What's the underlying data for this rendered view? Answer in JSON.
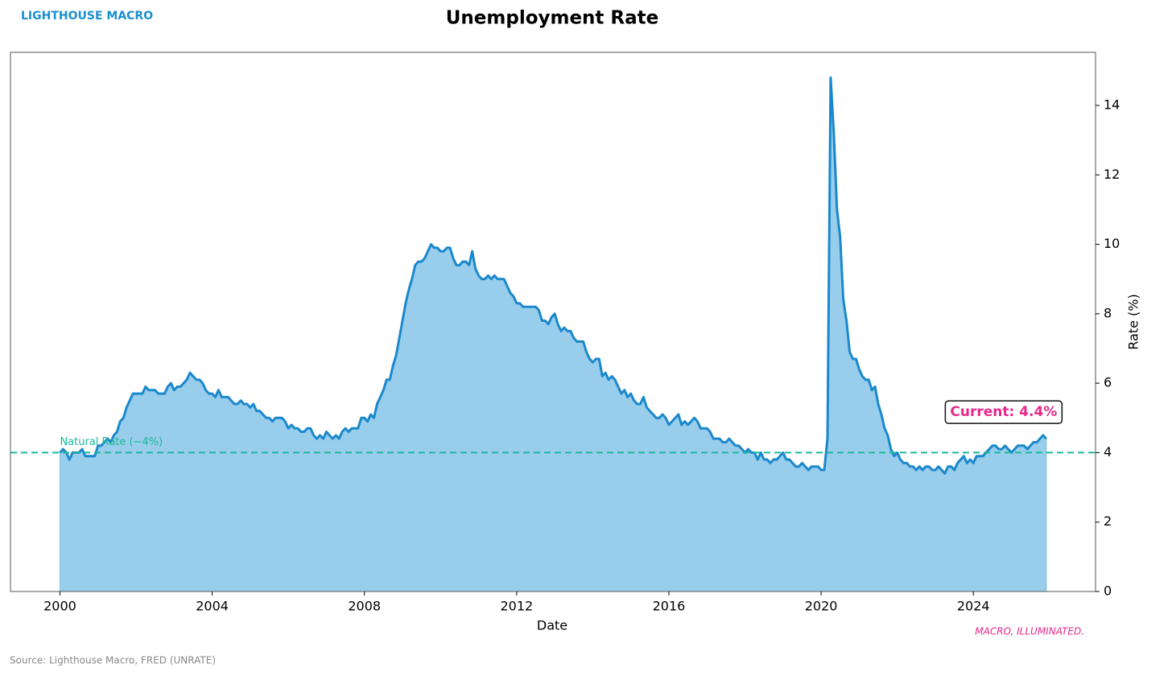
{
  "chart_data": {
    "type": "area",
    "title": "Unemployment Rate",
    "brand": "LIGHTHOUSE MACRO",
    "tagline": "MACRO, ILLUMINATED.",
    "source": "Source: Lighthouse Macro, FRED (UNRATE)",
    "x_label": "Date",
    "y_label": "Rate (%)",
    "color": "#1a88cc",
    "fill_color": "#99cdec",
    "y_axis_side": "right",
    "reference_line": {
      "value": 4,
      "label": "Natural Rate (~4%)",
      "color": "#1bb89a"
    },
    "annotation": {
      "text": "Current: 4.4%",
      "color": "#e6288a"
    },
    "xlim": [
      1998.7,
      2027.21
    ],
    "xticks": [
      2000,
      2004,
      2008,
      2012,
      2016,
      2020,
      2024
    ],
    "ylim": [
      0,
      15.53
    ],
    "yticks": [
      0,
      2,
      4,
      6,
      8,
      10,
      12,
      14
    ],
    "x": [
      2000,
      2000.083,
      2000.167,
      2000.25,
      2000.333,
      2000.417,
      2000.5,
      2000.583,
      2000.667,
      2000.75,
      2000.833,
      2000.917,
      2001,
      2001.083,
      2001.167,
      2001.25,
      2001.333,
      2001.417,
      2001.5,
      2001.583,
      2001.667,
      2001.75,
      2001.833,
      2001.917,
      2002,
      2002.083,
      2002.167,
      2002.25,
      2002.333,
      2002.417,
      2002.5,
      2002.583,
      2002.667,
      2002.75,
      2002.833,
      2002.917,
      2003,
      2003.083,
      2003.167,
      2003.25,
      2003.333,
      2003.417,
      2003.5,
      2003.583,
      2003.667,
      2003.75,
      2003.833,
      2003.917,
      2004,
      2004.083,
      2004.167,
      2004.25,
      2004.333,
      2004.417,
      2004.5,
      2004.583,
      2004.667,
      2004.75,
      2004.833,
      2004.917,
      2005,
      2005.083,
      2005.167,
      2005.25,
      2005.333,
      2005.417,
      2005.5,
      2005.583,
      2005.667,
      2005.75,
      2005.833,
      2005.917,
      2006,
      2006.083,
      2006.167,
      2006.25,
      2006.333,
      2006.417,
      2006.5,
      2006.583,
      2006.667,
      2006.75,
      2006.833,
      2006.917,
      2007,
      2007.083,
      2007.167,
      2007.25,
      2007.333,
      2007.417,
      2007.5,
      2007.583,
      2007.667,
      2007.75,
      2007.833,
      2007.917,
      2008,
      2008.083,
      2008.167,
      2008.25,
      2008.333,
      2008.417,
      2008.5,
      2008.583,
      2008.667,
      2008.75,
      2008.833,
      2008.917,
      2009,
      2009.083,
      2009.167,
      2009.25,
      2009.333,
      2009.417,
      2009.5,
      2009.583,
      2009.667,
      2009.75,
      2009.833,
      2009.917,
      2010,
      2010.083,
      2010.167,
      2010.25,
      2010.333,
      2010.417,
      2010.5,
      2010.583,
      2010.667,
      2010.75,
      2010.833,
      2010.917,
      2011,
      2011.083,
      2011.167,
      2011.25,
      2011.333,
      2011.417,
      2011.5,
      2011.583,
      2011.667,
      2011.75,
      2011.833,
      2011.917,
      2012,
      2012.083,
      2012.167,
      2012.25,
      2012.333,
      2012.417,
      2012.5,
      2012.583,
      2012.667,
      2012.75,
      2012.833,
      2012.917,
      2013,
      2013.083,
      2013.167,
      2013.25,
      2013.333,
      2013.417,
      2013.5,
      2013.583,
      2013.667,
      2013.75,
      2013.833,
      2013.917,
      2014,
      2014.083,
      2014.167,
      2014.25,
      2014.333,
      2014.417,
      2014.5,
      2014.583,
      2014.667,
      2014.75,
      2014.833,
      2014.917,
      2015,
      2015.083,
      2015.167,
      2015.25,
      2015.333,
      2015.417,
      2015.5,
      2015.583,
      2015.667,
      2015.75,
      2015.833,
      2015.917,
      2016,
      2016.083,
      2016.167,
      2016.25,
      2016.333,
      2016.417,
      2016.5,
      2016.583,
      2016.667,
      2016.75,
      2016.833,
      2016.917,
      2017,
      2017.083,
      2017.167,
      2017.25,
      2017.333,
      2017.417,
      2017.5,
      2017.583,
      2017.667,
      2017.75,
      2017.833,
      2017.917,
      2018,
      2018.083,
      2018.167,
      2018.25,
      2018.333,
      2018.417,
      2018.5,
      2018.583,
      2018.667,
      2018.75,
      2018.833,
      2018.917,
      2019,
      2019.083,
      2019.167,
      2019.25,
      2019.333,
      2019.417,
      2019.5,
      2019.583,
      2019.667,
      2019.75,
      2019.833,
      2019.917,
      2020,
      2020.083,
      2020.167,
      2020.25,
      2020.333,
      2020.417,
      2020.5,
      2020.583,
      2020.667,
      2020.75,
      2020.833,
      2020.917,
      2021,
      2021.083,
      2021.167,
      2021.25,
      2021.333,
      2021.417,
      2021.5,
      2021.583,
      2021.667,
      2021.75,
      2021.833,
      2021.917,
      2022,
      2022.083,
      2022.167,
      2022.25,
      2022.333,
      2022.417,
      2022.5,
      2022.583,
      2022.667,
      2022.75,
      2022.833,
      2022.917,
      2023,
      2023.083,
      2023.167,
      2023.25,
      2023.333,
      2023.417,
      2023.5,
      2023.583,
      2023.667,
      2023.75,
      2023.833,
      2023.917,
      2024,
      2024.083,
      2024.167,
      2024.25,
      2024.333,
      2024.417,
      2024.5,
      2024.583,
      2024.667,
      2024.75,
      2024.833,
      2024.917,
      2025,
      2025.083,
      2025.167,
      2025.25,
      2025.333,
      2025.417,
      2025.5,
      2025.583,
      2025.667,
      2025.75,
      2025.833,
      2025.917
    ],
    "values": [
      4.0,
      4.1,
      4.0,
      3.8,
      4.0,
      4.0,
      4.0,
      4.1,
      3.9,
      3.9,
      3.9,
      3.9,
      4.2,
      4.2,
      4.3,
      4.4,
      4.3,
      4.5,
      4.6,
      4.9,
      5.0,
      5.3,
      5.5,
      5.7,
      5.7,
      5.7,
      5.7,
      5.9,
      5.8,
      5.8,
      5.8,
      5.7,
      5.7,
      5.7,
      5.9,
      6.0,
      5.8,
      5.9,
      5.9,
      6.0,
      6.1,
      6.3,
      6.2,
      6.1,
      6.1,
      6.0,
      5.8,
      5.7,
      5.7,
      5.6,
      5.8,
      5.6,
      5.6,
      5.6,
      5.5,
      5.4,
      5.4,
      5.5,
      5.4,
      5.4,
      5.3,
      5.4,
      5.2,
      5.2,
      5.1,
      5.0,
      5.0,
      4.9,
      5.0,
      5.0,
      5.0,
      4.9,
      4.7,
      4.8,
      4.7,
      4.7,
      4.6,
      4.6,
      4.7,
      4.7,
      4.5,
      4.4,
      4.5,
      4.4,
      4.6,
      4.5,
      4.4,
      4.5,
      4.4,
      4.6,
      4.7,
      4.6,
      4.7,
      4.7,
      4.7,
      5.0,
      5.0,
      4.9,
      5.1,
      5.0,
      5.4,
      5.6,
      5.8,
      6.1,
      6.1,
      6.5,
      6.8,
      7.3,
      7.8,
      8.3,
      8.7,
      9.0,
      9.4,
      9.5,
      9.5,
      9.6,
      9.8,
      10.0,
      9.9,
      9.9,
      9.8,
      9.8,
      9.9,
      9.9,
      9.6,
      9.4,
      9.4,
      9.5,
      9.5,
      9.4,
      9.8,
      9.3,
      9.1,
      9.0,
      9.0,
      9.1,
      9.0,
      9.1,
      9.0,
      9.0,
      9.0,
      8.8,
      8.6,
      8.5,
      8.3,
      8.3,
      8.2,
      8.2,
      8.2,
      8.2,
      8.2,
      8.1,
      7.8,
      7.8,
      7.7,
      7.9,
      8.0,
      7.7,
      7.5,
      7.6,
      7.5,
      7.5,
      7.3,
      7.2,
      7.2,
      7.2,
      6.9,
      6.7,
      6.6,
      6.7,
      6.7,
      6.2,
      6.3,
      6.1,
      6.2,
      6.1,
      5.9,
      5.7,
      5.8,
      5.6,
      5.7,
      5.5,
      5.4,
      5.4,
      5.6,
      5.3,
      5.2,
      5.1,
      5.0,
      5.0,
      5.1,
      5.0,
      4.8,
      4.9,
      5.0,
      5.1,
      4.8,
      4.9,
      4.8,
      4.9,
      5.0,
      4.9,
      4.7,
      4.7,
      4.7,
      4.6,
      4.4,
      4.4,
      4.4,
      4.3,
      4.3,
      4.4,
      4.3,
      4.2,
      4.2,
      4.1,
      4.0,
      4.1,
      4.0,
      4.0,
      3.8,
      4.0,
      3.8,
      3.8,
      3.7,
      3.8,
      3.8,
      3.9,
      4.0,
      3.8,
      3.8,
      3.7,
      3.6,
      3.6,
      3.7,
      3.6,
      3.5,
      3.6,
      3.6,
      3.6,
      3.5,
      3.5,
      4.4,
      14.8,
      13.2,
      11.0,
      10.2,
      8.4,
      7.8,
      6.9,
      6.7,
      6.7,
      6.4,
      6.2,
      6.1,
      6.1,
      5.8,
      5.9,
      5.4,
      5.1,
      4.7,
      4.5,
      4.1,
      3.9,
      4.0,
      3.8,
      3.7,
      3.7,
      3.6,
      3.6,
      3.5,
      3.6,
      3.5,
      3.6,
      3.6,
      3.5,
      3.5,
      3.6,
      3.5,
      3.4,
      3.6,
      3.6,
      3.5,
      3.7,
      3.8,
      3.9,
      3.7,
      3.8,
      3.7,
      3.9,
      3.9,
      3.9,
      4.0,
      4.1,
      4.2,
      4.2,
      4.1,
      4.1,
      4.2,
      4.1,
      4.0,
      4.1,
      4.2,
      4.2,
      4.2,
      4.1,
      4.2,
      4.3,
      4.3,
      4.4,
      4.5,
      4.4
    ]
  }
}
